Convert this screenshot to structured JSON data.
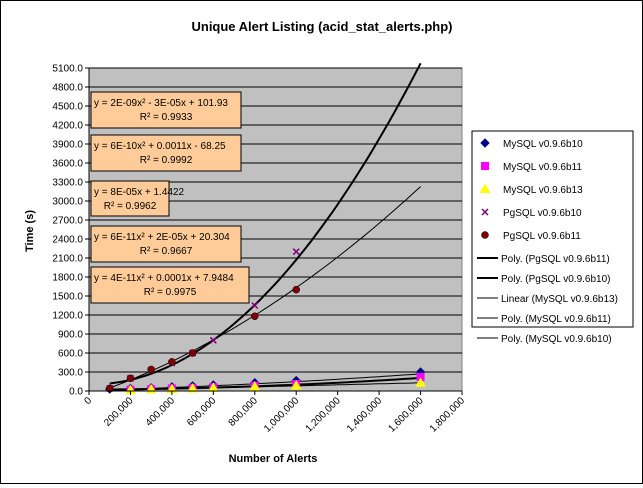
{
  "chart_data": {
    "type": "scatter",
    "title": "Unique Alert Listing (acid_stat_alerts.php)",
    "xlabel": "Number of Alerts",
    "ylabel": "Time (s)",
    "xlim": [
      0,
      1800000
    ],
    "ylim": [
      0,
      5100
    ],
    "x_tick_labels": [
      "0",
      "200,000",
      "400,000",
      "600,000",
      "800,000",
      "1,000,000",
      "1,200,000",
      "1,400,000",
      "1,600,000",
      "1,800,000"
    ],
    "y_tick_labels": [
      "0.0",
      "300.0",
      "600.0",
      "900.0",
      "1200.0",
      "1500.0",
      "1800.0",
      "2100.0",
      "2400.0",
      "2700.0",
      "3000.0",
      "3300.0",
      "3600.0",
      "3900.0",
      "4200.0",
      "4500.0",
      "4800.0",
      "5100.0"
    ],
    "grid": true,
    "legend_position": "right",
    "plot_background": "#c0c0c0",
    "series": [
      {
        "name": "MySQL v0.9.6b10",
        "marker": "diamond",
        "color": "#000080",
        "x": [
          100000,
          200000,
          300000,
          400000,
          500000,
          600000,
          800000,
          1000000,
          1600000
        ],
        "y": [
          30,
          40,
          50,
          65,
          80,
          95,
          130,
          165,
          300
        ]
      },
      {
        "name": "MySQL v0.9.6b11",
        "marker": "square",
        "color": "#ff00ff",
        "x": [
          200000,
          300000,
          400000,
          500000,
          600000,
          800000,
          1000000,
          1600000
        ],
        "y": [
          20,
          30,
          40,
          50,
          60,
          85,
          110,
          220
        ]
      },
      {
        "name": "MySQL v0.9.6b13",
        "marker": "triangle",
        "color": "#ffff00",
        "x": [
          200000,
          300000,
          400000,
          500000,
          600000,
          800000,
          1000000,
          1600000
        ],
        "y": [
          15,
          25,
          30,
          40,
          50,
          70,
          85,
          130
        ]
      },
      {
        "name": "PgSQL v0.9.6b10",
        "marker": "x",
        "color": "#800080",
        "x": [
          100000,
          200000,
          300000,
          400000,
          500000,
          600000,
          800000,
          1000000
        ],
        "y": [
          40,
          200,
          330,
          440,
          600,
          800,
          1350,
          2200
        ]
      },
      {
        "name": "PgSQL v0.9.6b11",
        "marker": "circle",
        "color": "#800000",
        "x": [
          100000,
          200000,
          300000,
          400000,
          500000,
          800000,
          1000000
        ],
        "y": [
          40,
          200,
          340,
          460,
          600,
          1180,
          1600
        ]
      }
    ],
    "trendlines": [
      {
        "name": "Poly. (PgSQL v0.9.6b11)",
        "kind": "poly",
        "coefficients": [
          20.304,
          2e-05,
          6e-11
        ],
        "x_range": [
          100000,
          1600000
        ],
        "weight": "thick"
      },
      {
        "name": "Poly. (PgSQL v0.9.6b10)",
        "kind": "poly",
        "coefficients": [
          101.93,
          -3e-05,
          2e-09
        ],
        "x_range": [
          100000,
          1600000
        ],
        "weight": "thick"
      },
      {
        "name": "Linear (MySQL v0.9.6b13)",
        "kind": "linear",
        "coefficients": [
          1.4422,
          8e-05
        ],
        "x_range": [
          100000,
          1600000
        ],
        "weight": "thin"
      },
      {
        "name": "Poly. (MySQL v0.9.6b11)",
        "kind": "poly",
        "coefficients": [
          -68.25,
          0.0011,
          6e-10
        ],
        "x_range": [
          100000,
          1600000
        ],
        "weight": "thin"
      },
      {
        "name": "Poly. (MySQL v0.9.6b10)",
        "kind": "poly",
        "coefficients": [
          7.9484,
          0.0001,
          4e-11
        ],
        "x_range": [
          100000,
          1600000
        ],
        "weight": "thin"
      }
    ],
    "equations": [
      {
        "eq": "y = 2E-09x² - 3E-05x + 101.93",
        "r2": "R² = 0.9933"
      },
      {
        "eq": "y = 6E-10x² + 0.0011x - 68.25",
        "r2": "R² = 0.9992"
      },
      {
        "eq": "y = 8E-05x + 1.4422",
        "r2": "R² = 0.9962"
      },
      {
        "eq": "y = 6E-11x² + 2E-05x + 20.304",
        "r2": "R² = 0.9667"
      },
      {
        "eq": "y = 4E-11x² + 0.0001x + 7.9484",
        "r2": "R² = 0.9975"
      }
    ]
  }
}
